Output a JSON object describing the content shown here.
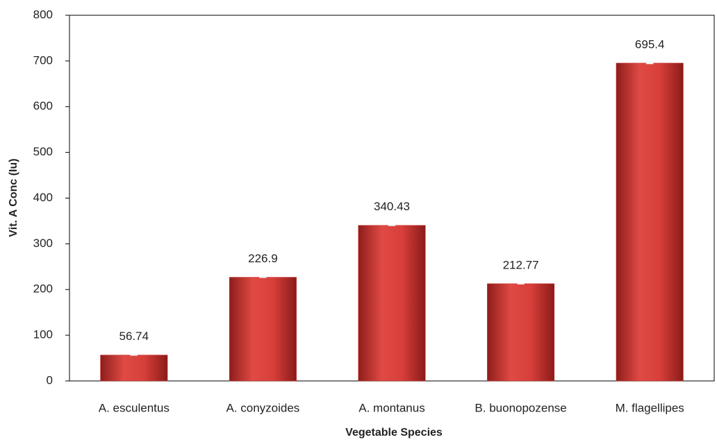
{
  "chart_data": {
    "type": "bar",
    "x_label": "Vegetable Species",
    "y_label": "Vit. A Conc (Iu)",
    "categories": [
      "A. esculentus",
      "A. conyzoides",
      "A. montanus",
      "B. buonopozense",
      "M. flagellipes"
    ],
    "values": [
      56.74,
      226.9,
      340.43,
      212.77,
      695.4
    ],
    "errors": [
      1,
      1,
      1,
      1,
      2
    ],
    "color": "#c9302c",
    "ylim": [
      0,
      800
    ],
    "yticks": [
      0,
      100,
      200,
      300,
      400,
      500,
      600,
      700,
      800
    ],
    "grid": false
  }
}
